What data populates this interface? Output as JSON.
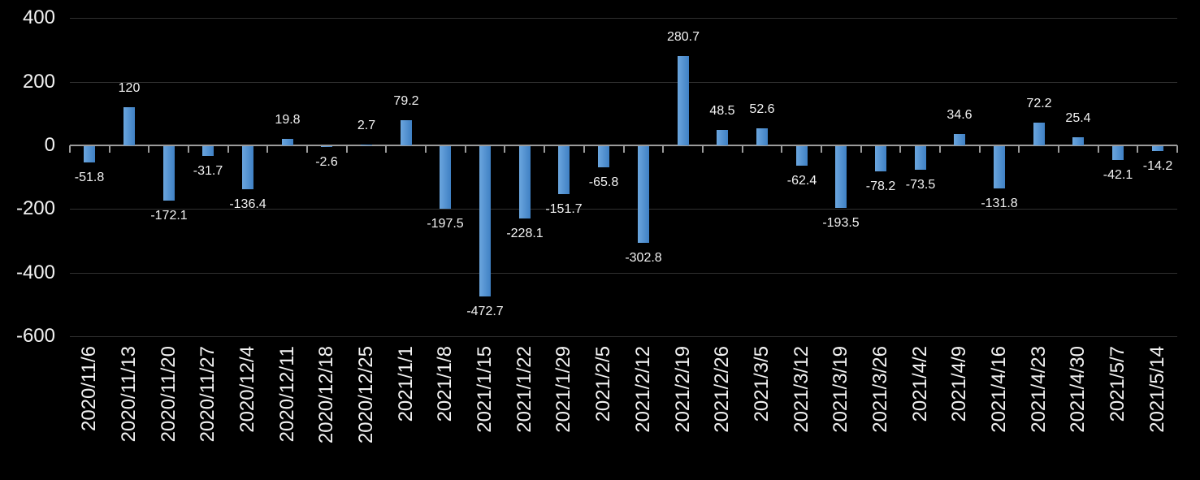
{
  "chart": {
    "background_color": "#000000",
    "text_color": "#f2f2f2",
    "grid_color": "#303030",
    "axis_color": "#9b9b9b",
    "bar_gradient": [
      "#6ba6de",
      "#3f80c4"
    ]
  },
  "chart_data": {
    "type": "bar",
    "title": "",
    "xlabel": "",
    "ylabel": "",
    "categories": [
      "2020/11/6",
      "2020/11/13",
      "2020/11/20",
      "2020/11/27",
      "2020/12/4",
      "2020/12/11",
      "2020/12/18",
      "2020/12/25",
      "2021/1/1",
      "2021/1/8",
      "2021/1/15",
      "2021/1/22",
      "2021/1/29",
      "2021/2/5",
      "2021/2/12",
      "2021/2/19",
      "2021/2/26",
      "2021/3/5",
      "2021/3/12",
      "2021/3/19",
      "2021/3/26",
      "2021/4/2",
      "2021/4/9",
      "2021/4/16",
      "2021/4/23",
      "2021/4/30",
      "2021/5/7",
      "2021/5/14"
    ],
    "values": [
      -51.8,
      120,
      -172.1,
      -31.7,
      -136.4,
      19.8,
      -2.6,
      2.7,
      79.2,
      -197.5,
      -472.7,
      -228.1,
      -151.7,
      -65.8,
      -302.8,
      280.7,
      48.5,
      52.6,
      -62.4,
      -193.5,
      -78.2,
      -73.5,
      34.6,
      -131.8,
      72.2,
      25.4,
      -42.1,
      -14.2
    ],
    "ylim": [
      -600,
      400
    ],
    "yticks": [
      400,
      200,
      0,
      -200,
      -400,
      -600
    ],
    "grid": true,
    "legend": false,
    "data_labels_position": "outside-end",
    "x_tick_label_rotation_deg": 90
  }
}
